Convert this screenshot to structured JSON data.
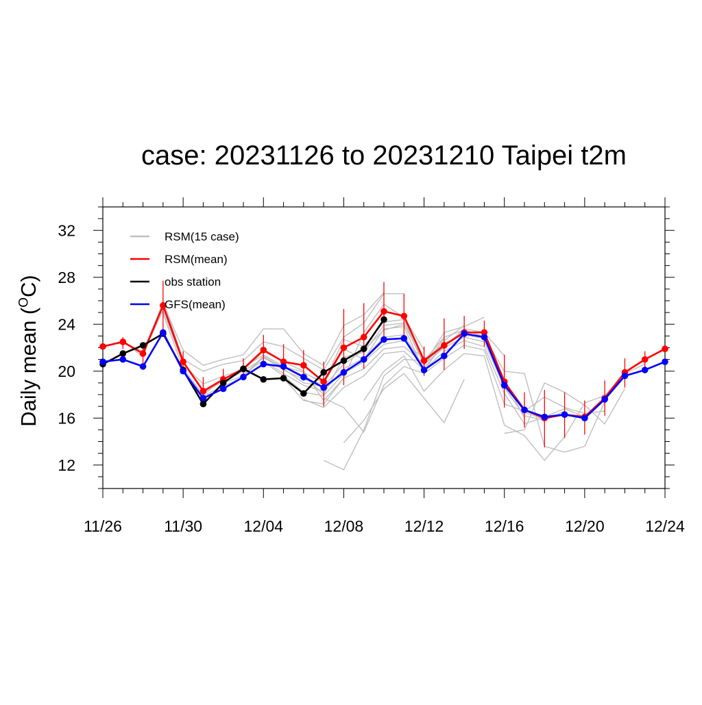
{
  "chart_data": {
    "type": "line",
    "title": "case: 20231126 to 20231210 Taipei t2m",
    "ylabel": "Daily mean (",
    "ylabel_sup": "O",
    "ylabel_tail": "C)",
    "xlabel": "",
    "ylim": [
      10,
      34
    ],
    "yticks": [
      12,
      16,
      20,
      24,
      28,
      32
    ],
    "ytick_labels": [
      "12",
      "16",
      "20",
      "24",
      "28",
      "32"
    ],
    "xlim": [
      "2023-11-26",
      "2023-12-24"
    ],
    "xticks": [
      "2023-11-26",
      "2023-11-30",
      "2023-12-04",
      "2023-12-08",
      "2023-12-12",
      "2023-12-16",
      "2023-12-20",
      "2023-12-24"
    ],
    "xtick_labels": [
      "11/26",
      "11/30",
      "12/04",
      "12/08",
      "12/12",
      "12/16",
      "12/20",
      "12/24"
    ],
    "grid": false,
    "legend_position": "top-left",
    "legend": [
      {
        "label": "RSM(15 case)",
        "color": "#bfbfbf"
      },
      {
        "label": "RSM(mean)",
        "color": "#ff0000"
      },
      {
        "label": "obs station",
        "color": "#000000"
      },
      {
        "label": "GFS(mean)",
        "color": "#0000ff"
      }
    ],
    "series": [
      {
        "name": "RSM(mean)",
        "color": "#ff0000",
        "x": [
          "2023-11-26",
          "2023-11-27",
          "2023-11-28",
          "2023-11-29",
          "2023-11-30",
          "2023-12-01",
          "2023-12-02",
          "2023-12-03",
          "2023-12-04",
          "2023-12-05",
          "2023-12-06",
          "2023-12-07",
          "2023-12-08",
          "2023-12-09",
          "2023-12-10",
          "2023-12-11",
          "2023-12-12",
          "2023-12-13",
          "2023-12-14",
          "2023-12-15",
          "2023-12-16",
          "2023-12-17",
          "2023-12-18",
          "2023-12-19",
          "2023-12-20",
          "2023-12-21",
          "2023-12-22",
          "2023-12-23",
          "2023-12-24"
        ],
        "y": [
          22.1,
          22.5,
          21.5,
          25.6,
          20.8,
          18.3,
          19.3,
          20.2,
          21.8,
          20.8,
          20.5,
          19.1,
          22.0,
          22.9,
          25.1,
          24.7,
          20.9,
          22.2,
          23.3,
          23.3,
          19.1,
          16.7,
          16.0,
          16.3,
          16.1,
          17.7,
          19.9,
          21.0,
          21.9
        ]
      },
      {
        "name": "obs station",
        "color": "#000000",
        "x": [
          "2023-11-26",
          "2023-11-27",
          "2023-11-28",
          "2023-11-29",
          "2023-11-30",
          "2023-12-01",
          "2023-12-02",
          "2023-12-03",
          "2023-12-04",
          "2023-12-05",
          "2023-12-06",
          "2023-12-07",
          "2023-12-08",
          "2023-12-09",
          "2023-12-10"
        ],
        "y": [
          20.6,
          21.5,
          22.2,
          23.2,
          20.1,
          17.2,
          19.0,
          20.2,
          19.3,
          19.4,
          18.1,
          19.9,
          20.9,
          21.9,
          24.4
        ]
      },
      {
        "name": "GFS(mean)",
        "color": "#0000ff",
        "x": [
          "2023-11-26",
          "2023-11-27",
          "2023-11-28",
          "2023-11-29",
          "2023-11-30",
          "2023-12-01",
          "2023-12-02",
          "2023-12-03",
          "2023-12-04",
          "2023-12-05",
          "2023-12-06",
          "2023-12-07",
          "2023-12-08",
          "2023-12-09",
          "2023-12-10",
          "2023-12-11",
          "2023-12-12",
          "2023-12-13",
          "2023-12-14",
          "2023-12-15",
          "2023-12-16",
          "2023-12-17",
          "2023-12-18",
          "2023-12-19",
          "2023-12-20",
          "2023-12-21",
          "2023-12-22",
          "2023-12-23",
          "2023-12-24"
        ],
        "y": [
          20.8,
          21.0,
          20.4,
          23.3,
          20.0,
          17.7,
          18.5,
          19.5,
          20.6,
          20.4,
          19.5,
          18.6,
          19.9,
          21.0,
          22.7,
          22.8,
          20.1,
          21.3,
          23.2,
          22.9,
          18.8,
          16.7,
          16.1,
          16.3,
          16.0,
          17.6,
          19.6,
          20.1,
          20.8
        ]
      }
    ],
    "error_bars": {
      "series": "RSM(mean)",
      "color": "#ff0000",
      "x": [
        "2023-11-27",
        "2023-11-28",
        "2023-11-29",
        "2023-11-30",
        "2023-12-01",
        "2023-12-02",
        "2023-12-03",
        "2023-12-04",
        "2023-12-05",
        "2023-12-06",
        "2023-12-07",
        "2023-12-08",
        "2023-12-09",
        "2023-12-10",
        "2023-12-11",
        "2023-12-12",
        "2023-12-13",
        "2023-12-14",
        "2023-12-15",
        "2023-12-16",
        "2023-12-17",
        "2023-12-18",
        "2023-12-19",
        "2023-12-20",
        "2023-12-21",
        "2023-12-22",
        "2023-12-23"
      ],
      "low": [
        21.9,
        20.6,
        23.0,
        19.9,
        17.3,
        18.3,
        19.3,
        20.6,
        19.4,
        19.2,
        17.0,
        18.8,
        20.2,
        22.7,
        22.8,
        19.6,
        20.1,
        21.9,
        22.1,
        16.9,
        15.2,
        13.5,
        14.3,
        14.6,
        16.2,
        18.6,
        20.1
      ],
      "high": [
        22.9,
        22.2,
        27.7,
        21.7,
        19.5,
        20.2,
        21.1,
        23.1,
        22.3,
        21.8,
        20.8,
        25.3,
        25.8,
        27.6,
        26.6,
        22.1,
        24.5,
        24.7,
        24.3,
        21.4,
        18.2,
        18.4,
        18.2,
        17.5,
        19.2,
        21.1,
        21.7
      ]
    },
    "ensemble_members": [
      {
        "x": [
          "2023-11-26",
          "2023-11-27",
          "2023-11-28",
          "2023-11-29",
          "2023-11-30",
          "2023-12-01",
          "2023-12-02",
          "2023-12-03",
          "2023-12-04",
          "2023-12-05",
          "2023-12-06",
          "2023-12-07",
          "2023-12-08",
          "2023-12-09",
          "2023-12-10"
        ],
        "y": [
          22.2,
          22.4,
          21.7,
          25.8,
          21.8,
          20.5,
          21.0,
          21.4,
          23.6,
          23.6,
          21.5,
          20.5,
          23.9,
          24.8,
          26.7
        ]
      },
      {
        "x": [
          "2023-11-27",
          "2023-11-28",
          "2023-11-29",
          "2023-11-30",
          "2023-12-01",
          "2023-12-02",
          "2023-12-03",
          "2023-12-04",
          "2023-12-05",
          "2023-12-06",
          "2023-12-07",
          "2023-12-08",
          "2023-12-09",
          "2023-12-10",
          "2023-12-11"
        ],
        "y": [
          22.6,
          21.2,
          26.0,
          21.0,
          20.0,
          20.6,
          20.9,
          22.5,
          22.1,
          21.1,
          20.1,
          22.9,
          24.1,
          26.6,
          26.6
        ]
      },
      {
        "x": [
          "2023-11-28",
          "2023-11-29",
          "2023-11-30",
          "2023-12-01",
          "2023-12-02",
          "2023-12-03",
          "2023-12-04",
          "2023-12-05",
          "2023-12-06",
          "2023-12-07",
          "2023-12-08",
          "2023-12-09",
          "2023-12-10",
          "2023-12-11",
          "2023-12-12"
        ],
        "y": [
          21.5,
          25.2,
          20.6,
          18.9,
          19.6,
          20.1,
          21.7,
          20.8,
          20.0,
          17.5,
          19.4,
          23.3,
          25.7,
          24.6,
          21.8
        ]
      },
      {
        "x": [
          "2023-11-29",
          "2023-11-30",
          "2023-12-01",
          "2023-12-02",
          "2023-12-03",
          "2023-12-04",
          "2023-12-05",
          "2023-12-06",
          "2023-12-07",
          "2023-12-08",
          "2023-12-09",
          "2023-12-10",
          "2023-12-11",
          "2023-12-12",
          "2023-12-13"
        ],
        "y": [
          24.9,
          20.2,
          18.0,
          19.3,
          20.3,
          21.4,
          20.4,
          19.9,
          19.0,
          22.7,
          22.1,
          24.2,
          24.4,
          20.5,
          22.8
        ]
      },
      {
        "x": [
          "2023-11-30",
          "2023-12-01",
          "2023-12-02",
          "2023-12-03",
          "2023-12-04",
          "2023-12-05",
          "2023-12-06",
          "2023-12-07",
          "2023-12-08",
          "2023-12-09",
          "2023-12-10",
          "2023-12-11",
          "2023-12-12",
          "2023-12-13",
          "2023-12-14"
        ],
        "y": [
          20.1,
          17.9,
          18.7,
          19.5,
          21.2,
          20.1,
          19.3,
          18.9,
          21.9,
          21.0,
          23.6,
          23.8,
          20.0,
          22.6,
          23.9
        ]
      },
      {
        "x": [
          "2023-12-01",
          "2023-12-02",
          "2023-12-03",
          "2023-12-04",
          "2023-12-05",
          "2023-12-06",
          "2023-12-07",
          "2023-12-08",
          "2023-12-09",
          "2023-12-10",
          "2023-12-11",
          "2023-12-12",
          "2023-12-13",
          "2023-12-14",
          "2023-12-15"
        ],
        "y": [
          18.2,
          19.1,
          20.0,
          21.1,
          20.4,
          19.6,
          18.0,
          21.2,
          21.6,
          23.9,
          24.1,
          20.6,
          23.3,
          23.8,
          24.6
        ]
      },
      {
        "x": [
          "2023-12-02",
          "2023-12-03",
          "2023-12-04",
          "2023-12-05",
          "2023-12-06",
          "2023-12-07",
          "2023-12-08",
          "2023-12-09",
          "2023-12-10",
          "2023-12-11",
          "2023-12-12",
          "2023-12-13",
          "2023-12-14",
          "2023-12-15",
          "2023-12-16"
        ],
        "y": [
          19.0,
          19.6,
          21.3,
          20.2,
          19.0,
          18.7,
          20.6,
          21.8,
          23.5,
          24.0,
          20.8,
          22.1,
          23.6,
          23.3,
          21.3
        ]
      },
      {
        "x": [
          "2023-12-03",
          "2023-12-04",
          "2023-12-05",
          "2023-12-06",
          "2023-12-07",
          "2023-12-08",
          "2023-12-09",
          "2023-12-10",
          "2023-12-11",
          "2023-12-12",
          "2023-12-13",
          "2023-12-14",
          "2023-12-15",
          "2023-12-16",
          "2023-12-17"
        ],
        "y": [
          19.8,
          20.9,
          19.8,
          18.8,
          18.3,
          20.2,
          21.1,
          22.9,
          23.1,
          20.3,
          22.2,
          23.4,
          23.0,
          19.3,
          16.0
        ]
      },
      {
        "x": [
          "2023-12-04",
          "2023-12-05",
          "2023-12-06",
          "2023-12-07",
          "2023-12-08",
          "2023-12-09",
          "2023-12-10",
          "2023-12-11",
          "2023-12-12",
          "2023-12-13",
          "2023-12-14",
          "2023-12-15",
          "2023-12-16",
          "2023-12-17",
          "2023-12-18"
        ],
        "y": [
          20.8,
          19.6,
          18.2,
          17.9,
          19.8,
          20.8,
          22.3,
          22.6,
          21.0,
          22.4,
          23.1,
          22.8,
          19.0,
          16.5,
          15.9
        ]
      },
      {
        "x": [
          "2023-12-05",
          "2023-12-06",
          "2023-12-07",
          "2023-12-08",
          "2023-12-09",
          "2023-12-10",
          "2023-12-11",
          "2023-12-12",
          "2023-12-13",
          "2023-12-14",
          "2023-12-15",
          "2023-12-16",
          "2023-12-17",
          "2023-12-18",
          "2023-12-19"
        ],
        "y": [
          19.4,
          17.5,
          17.2,
          19.4,
          20.2,
          21.9,
          22.1,
          20.6,
          22.0,
          22.9,
          22.5,
          18.6,
          16.2,
          15.8,
          16.6
        ]
      },
      {
        "x": [
          "2023-12-06",
          "2023-12-07",
          "2023-12-08",
          "2023-12-09",
          "2023-12-10",
          "2023-12-11",
          "2023-12-12",
          "2023-12-13",
          "2023-12-14",
          "2023-12-15",
          "2023-12-16",
          "2023-12-17",
          "2023-12-18",
          "2023-12-19",
          "2023-12-20"
        ],
        "y": [
          17.6,
          16.9,
          18.6,
          19.6,
          21.5,
          21.7,
          20.1,
          21.7,
          22.6,
          22.1,
          18.1,
          15.5,
          16.1,
          16.8,
          16.1
        ]
      },
      {
        "x": [
          "2023-12-07",
          "2023-12-08",
          "2023-12-09",
          "2023-12-10",
          "2023-12-11",
          "2023-12-12",
          "2023-12-13",
          "2023-12-14",
          "2023-12-15",
          "2023-12-16",
          "2023-12-17",
          "2023-12-18",
          "2023-12-19",
          "2023-12-20",
          "2023-12-21"
        ],
        "y": [
          17.7,
          16.9,
          14.8,
          18.8,
          20.4,
          19.8,
          21.1,
          22.2,
          21.8,
          17.2,
          16.6,
          17.8,
          16.9,
          16.4,
          16.6
        ]
      },
      {
        "x": [
          "2023-12-08",
          "2023-12-09",
          "2023-12-10",
          "2023-12-11",
          "2023-12-12",
          "2023-12-13",
          "2023-12-14",
          "2023-12-15",
          "2023-12-16",
          "2023-12-17",
          "2023-12-18",
          "2023-12-19",
          "2023-12-20",
          "2023-12-21",
          "2023-12-22"
        ],
        "y": [
          13.9,
          15.8,
          18.5,
          19.8,
          17.7,
          15.6,
          19.3,
          null,
          14.7,
          15.0,
          19.0,
          18.2,
          17.1,
          15.5,
          18.5
        ]
      },
      {
        "x": [
          "2023-12-09",
          "2023-12-10",
          "2023-12-11",
          "2023-12-12",
          "2023-12-13",
          "2023-12-14",
          "2023-12-15",
          "2023-12-16",
          "2023-12-17",
          "2023-12-18",
          "2023-12-19",
          "2023-12-20",
          "2023-12-21",
          "2023-12-22",
          "2023-12-23"
        ],
        "y": [
          17.5,
          20.0,
          21.3,
          18.3,
          20.1,
          21.5,
          21.3,
          15.4,
          14.5,
          12.4,
          14.4,
          17.3,
          17.9,
          19.8,
          20.6
        ]
      },
      {
        "x": [
          "2023-12-07",
          "2023-12-08",
          "2023-12-09",
          "2023-12-10",
          "2023-12-11",
          "2023-12-12",
          "2023-12-13",
          "2023-12-14",
          "2023-12-15",
          "2023-12-16",
          "2023-12-17",
          "2023-12-18",
          "2023-12-19",
          "2023-12-20",
          "2023-12-21"
        ],
        "y": [
          12.4,
          11.6,
          15.0,
          19.6,
          21.0,
          20.9,
          22.9,
          23.5,
          22.9,
          20.0,
          19.8,
          13.6,
          13.1,
          13.6,
          17.4
        ]
      }
    ]
  }
}
